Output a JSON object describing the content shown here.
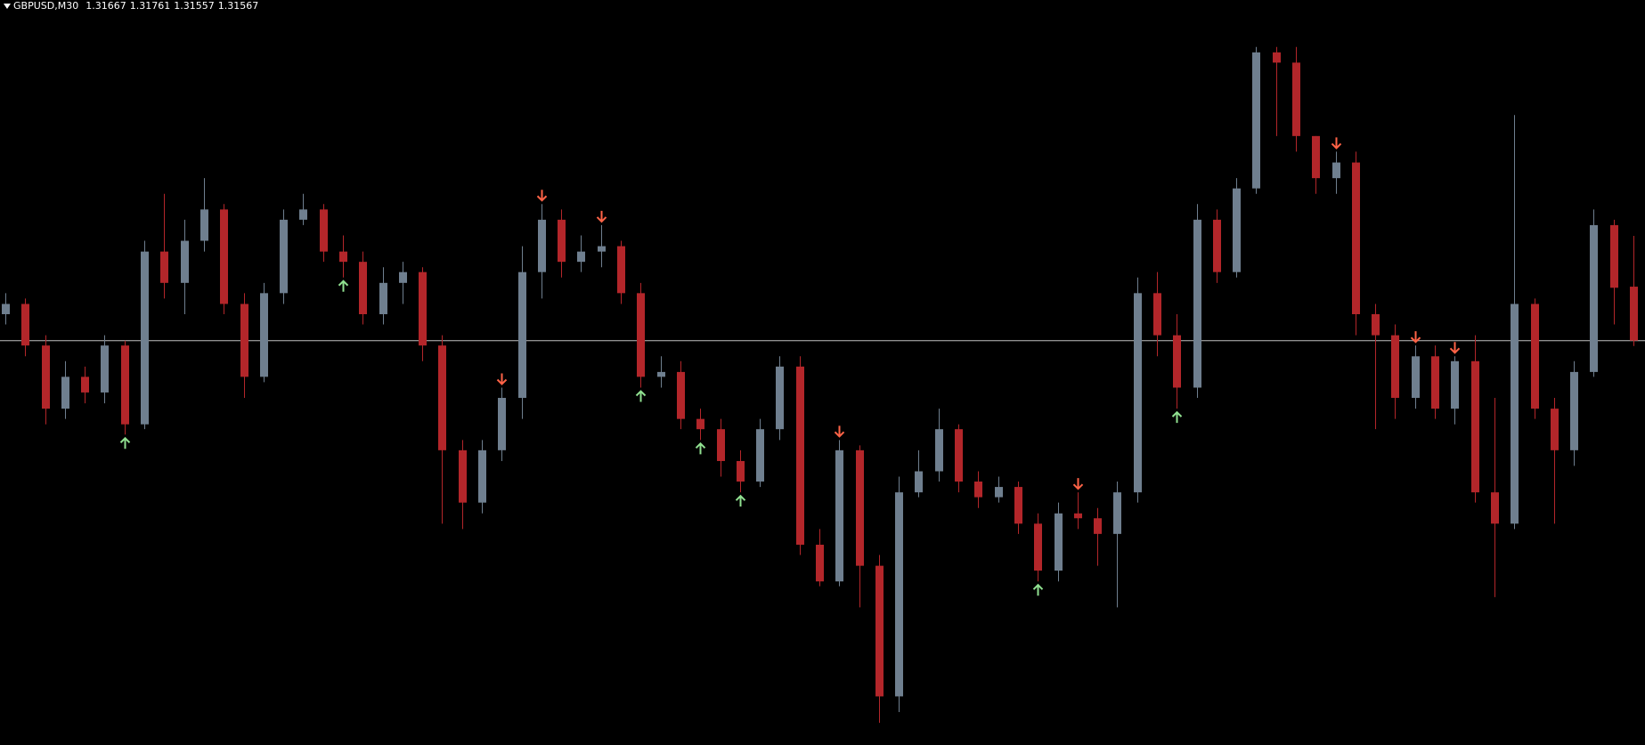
{
  "chart_data": {
    "type": "candlestick",
    "title": "GBPUSD,M30",
    "ylim": [
      1.30818,
      1.32198
    ],
    "bull_color": "#6f7f8f",
    "bear_color": "#b3262a",
    "up_signal_color": "#90e090",
    "down_signal_color": "#ff6347",
    "bid_line_color": "#c0c0c0",
    "candles": [
      [
        1.31616,
        1.31655,
        1.31597,
        1.31635
      ],
      [
        1.31635,
        1.31645,
        1.31538,
        1.31558
      ],
      [
        1.31558,
        1.31577,
        1.31412,
        1.31441
      ],
      [
        1.31441,
        1.31529,
        1.31422,
        1.315
      ],
      [
        1.315,
        1.31519,
        1.31451,
        1.31471
      ],
      [
        1.31471,
        1.31577,
        1.31451,
        1.31558
      ],
      [
        1.31558,
        1.31567,
        1.31393,
        1.31412
      ],
      [
        1.31412,
        1.31752,
        1.31403,
        1.31732
      ],
      [
        1.31732,
        1.31839,
        1.31645,
        1.31674
      ],
      [
        1.31674,
        1.31791,
        1.31616,
        1.31752
      ],
      [
        1.31752,
        1.31868,
        1.31732,
        1.3181
      ],
      [
        1.3181,
        1.3182,
        1.31616,
        1.31635
      ],
      [
        1.31635,
        1.31655,
        1.31461,
        1.315
      ],
      [
        1.315,
        1.31674,
        1.3149,
        1.31655
      ],
      [
        1.31655,
        1.3181,
        1.31635,
        1.31791
      ],
      [
        1.31791,
        1.31839,
        1.31781,
        1.3181
      ],
      [
        1.3181,
        1.3182,
        1.31713,
        1.31732
      ],
      [
        1.31732,
        1.31762,
        1.31684,
        1.31713
      ],
      [
        1.31713,
        1.31732,
        1.31597,
        1.31616
      ],
      [
        1.31616,
        1.31703,
        1.31597,
        1.31674
      ],
      [
        1.31674,
        1.31713,
        1.31635,
        1.31694
      ],
      [
        1.31694,
        1.31703,
        1.31529,
        1.31558
      ],
      [
        1.31558,
        1.31577,
        1.31228,
        1.31364
      ],
      [
        1.31364,
        1.31383,
        1.31218,
        1.31267
      ],
      [
        1.31267,
        1.31383,
        1.31247,
        1.31364
      ],
      [
        1.31364,
        1.3148,
        1.31344,
        1.31461
      ],
      [
        1.31461,
        1.31742,
        1.31422,
        1.31694
      ],
      [
        1.31694,
        1.3182,
        1.31645,
        1.31791
      ],
      [
        1.31791,
        1.3181,
        1.31684,
        1.31713
      ],
      [
        1.31713,
        1.31762,
        1.31694,
        1.31732
      ],
      [
        1.31732,
        1.31781,
        1.31703,
        1.31742
      ],
      [
        1.31742,
        1.31752,
        1.31635,
        1.31655
      ],
      [
        1.31655,
        1.31674,
        1.3148,
        1.315
      ],
      [
        1.315,
        1.31538,
        1.3148,
        1.31509
      ],
      [
        1.31509,
        1.31529,
        1.31403,
        1.31422
      ],
      [
        1.31422,
        1.31441,
        1.31383,
        1.31403
      ],
      [
        1.31403,
        1.31422,
        1.31315,
        1.31344
      ],
      [
        1.31344,
        1.31364,
        1.31286,
        1.31306
      ],
      [
        1.31306,
        1.31422,
        1.31296,
        1.31403
      ],
      [
        1.31403,
        1.31538,
        1.31383,
        1.31519
      ],
      [
        1.31519,
        1.31538,
        1.3117,
        1.31189
      ],
      [
        1.31189,
        1.31218,
        1.31112,
        1.31121
      ],
      [
        1.31121,
        1.31383,
        1.31112,
        1.31364
      ],
      [
        1.31364,
        1.31373,
        1.31073,
        1.3115
      ],
      [
        1.3115,
        1.3117,
        1.30859,
        1.30908
      ],
      [
        1.30908,
        1.31315,
        1.30879,
        1.31286
      ],
      [
        1.31286,
        1.31364,
        1.31277,
        1.31325
      ],
      [
        1.31325,
        1.31441,
        1.31306,
        1.31403
      ],
      [
        1.31403,
        1.31412,
        1.31286,
        1.31306
      ],
      [
        1.31306,
        1.31325,
        1.31257,
        1.31277
      ],
      [
        1.31277,
        1.31315,
        1.31267,
        1.31296
      ],
      [
        1.31296,
        1.31306,
        1.31209,
        1.31228
      ],
      [
        1.31228,
        1.31247,
        1.31121,
        1.31141
      ],
      [
        1.31141,
        1.31267,
        1.31121,
        1.31247
      ],
      [
        1.31247,
        1.31286,
        1.31218,
        1.31238
      ],
      [
        1.31238,
        1.31257,
        1.3115,
        1.31209
      ],
      [
        1.31209,
        1.31306,
        1.31073,
        1.31286
      ],
      [
        1.31286,
        1.31684,
        1.31267,
        1.31655
      ],
      [
        1.31655,
        1.31694,
        1.31538,
        1.31577
      ],
      [
        1.31577,
        1.31616,
        1.31441,
        1.3148
      ],
      [
        1.3148,
        1.3182,
        1.31461,
        1.31791
      ],
      [
        1.31791,
        1.3181,
        1.31674,
        1.31694
      ],
      [
        1.31694,
        1.31868,
        1.31684,
        1.31849
      ],
      [
        1.31849,
        1.32111,
        1.31839,
        1.32101
      ],
      [
        1.32101,
        1.32111,
        1.31946,
        1.32082
      ],
      [
        1.32082,
        1.32111,
        1.31917,
        1.31946
      ],
      [
        1.31946,
        1.31946,
        1.31839,
        1.31868
      ],
      [
        1.31868,
        1.31917,
        1.31839,
        1.31897
      ],
      [
        1.31897,
        1.31917,
        1.31577,
        1.31616
      ],
      [
        1.31616,
        1.31635,
        1.31403,
        1.31577
      ],
      [
        1.31577,
        1.31597,
        1.31422,
        1.31461
      ],
      [
        1.31461,
        1.31558,
        1.31441,
        1.31538
      ],
      [
        1.31538,
        1.31558,
        1.31422,
        1.31441
      ],
      [
        1.31441,
        1.31538,
        1.31412,
        1.31529
      ],
      [
        1.31529,
        1.31577,
        1.31267,
        1.31286
      ],
      [
        1.31286,
        1.31461,
        1.31092,
        1.31228
      ],
      [
        1.31228,
        1.31985,
        1.31218,
        1.31635
      ],
      [
        1.31635,
        1.31645,
        1.31422,
        1.31441
      ],
      [
        1.31441,
        1.31461,
        1.31228,
        1.31364
      ],
      [
        1.31364,
        1.31529,
        1.31335,
        1.31509
      ],
      [
        1.31509,
        1.3181,
        1.315,
        1.31781
      ],
      [
        1.31781,
        1.31791,
        1.31597,
        1.31665
      ],
      [
        1.31667,
        1.31761,
        1.31557,
        1.31567
      ]
    ],
    "signals": [
      {
        "candle": 6,
        "direction": "up"
      },
      {
        "candle": 17,
        "direction": "up"
      },
      {
        "candle": 25,
        "direction": "down"
      },
      {
        "candle": 27,
        "direction": "down"
      },
      {
        "candle": 30,
        "direction": "down"
      },
      {
        "candle": 32,
        "direction": "up"
      },
      {
        "candle": 35,
        "direction": "up"
      },
      {
        "candle": 37,
        "direction": "up"
      },
      {
        "candle": 42,
        "direction": "down"
      },
      {
        "candle": 52,
        "direction": "up"
      },
      {
        "candle": 54,
        "direction": "down"
      },
      {
        "candle": 59,
        "direction": "up"
      },
      {
        "candle": 67,
        "direction": "down"
      },
      {
        "candle": 71,
        "direction": "down"
      },
      {
        "candle": 73,
        "direction": "down"
      }
    ]
  }
}
